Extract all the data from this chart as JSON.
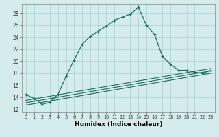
{
  "xlabel": "Humidex (Indice chaleur)",
  "bg_color": "#d4ecec",
  "grid_color": "#aad0d0",
  "line_color": "#1a6b5a",
  "xlim": [
    -0.5,
    23.5
  ],
  "ylim": [
    11.5,
    29.5
  ],
  "xticks": [
    0,
    1,
    2,
    3,
    4,
    5,
    6,
    7,
    8,
    9,
    10,
    11,
    12,
    13,
    14,
    15,
    16,
    17,
    18,
    19,
    20,
    21,
    22,
    23
  ],
  "yticks": [
    12,
    14,
    16,
    18,
    20,
    22,
    24,
    26,
    28
  ],
  "main_x": [
    0,
    1,
    2,
    3,
    4,
    5,
    6,
    7,
    8,
    9,
    10,
    11,
    12,
    13,
    14,
    15,
    16,
    17,
    18,
    19,
    20,
    21,
    22,
    23
  ],
  "main_y": [
    14.5,
    13.8,
    12.8,
    13.2,
    14.5,
    17.5,
    20.2,
    22.8,
    24.1,
    25.0,
    25.8,
    26.8,
    27.3,
    27.8,
    29.0,
    26.0,
    24.5,
    20.8,
    19.5,
    18.5,
    18.5,
    18.2,
    18.0,
    18.5
  ],
  "line1_x": [
    0,
    23
  ],
  "line1_y": [
    13.5,
    18.8
  ],
  "line2_x": [
    0,
    23
  ],
  "line2_y": [
    13.1,
    18.4
  ],
  "line3_x": [
    0,
    23
  ],
  "line3_y": [
    12.7,
    18.0
  ]
}
